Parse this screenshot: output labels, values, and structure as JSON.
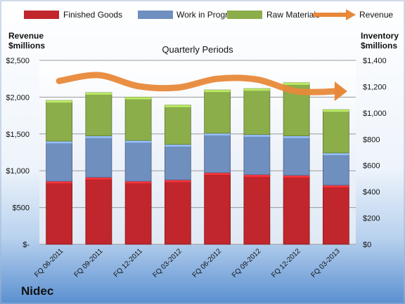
{
  "chart_data": {
    "type": "bar",
    "title": "Quarterly Periods",
    "company": "Nidec",
    "categories": [
      "FQ 06-2011",
      "FQ 09-2011",
      "FQ 12-2011",
      "FQ 03-2012",
      "FQ 06-2012",
      "FQ 09-2012",
      "FQ 12-2012",
      "FQ 03-2013"
    ],
    "stacked": true,
    "left_axis": {
      "label_line1": "Revenue",
      "label_line2": "$millions",
      "range": [
        0,
        2500
      ],
      "ticks": [
        0,
        500,
        1000,
        1500,
        2000,
        2500
      ],
      "tick_labels": [
        "$-",
        "$500",
        "$1,000",
        "$1,500",
        "$2,000",
        "$2,500"
      ]
    },
    "right_axis": {
      "label_line1": "Inventory",
      "label_line2": "$millions",
      "range": [
        0,
        1400
      ],
      "ticks": [
        0,
        200,
        400,
        600,
        800,
        1000,
        1200,
        1400
      ],
      "tick_labels": [
        "$0",
        "$200",
        "$400",
        "$600",
        "$800",
        "$1,000",
        "$1,200",
        "$1,400"
      ]
    },
    "series": [
      {
        "name": "Finished Goods",
        "axis": "right",
        "color": "#c0262b",
        "values": [
          480,
          510,
          480,
          490,
          545,
          530,
          525,
          450
        ]
      },
      {
        "name": "Work in Progress",
        "axis": "right",
        "color": "#6f8fbf",
        "values": [
          305,
          315,
          310,
          270,
          300,
          305,
          300,
          245
        ]
      },
      {
        "name": "Raw Materials",
        "axis": "right",
        "color": "#8bad4a",
        "values": [
          310,
          330,
          330,
          300,
          330,
          350,
          405,
          330
        ]
      },
      {
        "name": "Revenue",
        "axis": "left",
        "type": "line",
        "color": "#e8893a",
        "values": [
          2220,
          2300,
          2150,
          2130,
          2250,
          2240,
          2080,
          2080
        ]
      }
    ],
    "legend_position": "top",
    "grid": true
  }
}
